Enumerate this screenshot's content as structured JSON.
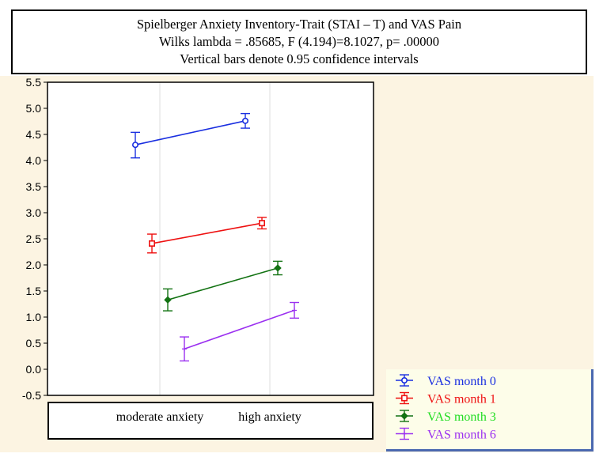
{
  "chart_data": {
    "type": "line",
    "title": "Spielberger Anxiety Inventory-Trait (STAI – T)  and VAS Pain",
    "subtitle": "Wilks lambda = .85685, F (4.194)=8.1027,  p= .00000",
    "note": "Vertical bars denote 0.95 confidence intervals",
    "categories": [
      "moderate anxiety",
      "high anxiety"
    ],
    "ylim": [
      -0.5,
      5.5
    ],
    "yticks": [
      "5.5",
      "5.0",
      "4.5",
      "4.0",
      "3.5",
      "3.0",
      "2.5",
      "2.0",
      "1.5",
      "1.0",
      "0.5",
      "0.0",
      "-0.5"
    ],
    "grid": true,
    "legend_position": "bottom-right",
    "series": [
      {
        "name": "VAS month 0",
        "color": "#1a2fe0",
        "marker": "circle",
        "values": [
          4.3,
          4.76
        ],
        "ci_low": [
          4.05,
          4.62
        ],
        "ci_high": [
          4.54,
          4.9
        ]
      },
      {
        "name": "VAS month 1",
        "color": "#ee1111",
        "marker": "square",
        "values": [
          2.41,
          2.8
        ],
        "ci_low": [
          2.23,
          2.69
        ],
        "ci_high": [
          2.59,
          2.91
        ]
      },
      {
        "name": "VAS month 3",
        "color": "#127212",
        "marker": "diamond",
        "values": [
          1.33,
          1.94
        ],
        "ci_low": [
          1.12,
          1.81
        ],
        "ci_high": [
          1.54,
          2.07
        ]
      },
      {
        "name": "VAS month 6",
        "color": "#9b30f0",
        "marker": "plus",
        "values": [
          0.39,
          1.13
        ],
        "ci_low": [
          0.16,
          0.98
        ],
        "ci_high": [
          0.62,
          1.28
        ]
      }
    ],
    "legend_text_colors": [
      "#1a2fe0",
      "#ee1111",
      "#22dd22",
      "#9b30f0"
    ]
  }
}
